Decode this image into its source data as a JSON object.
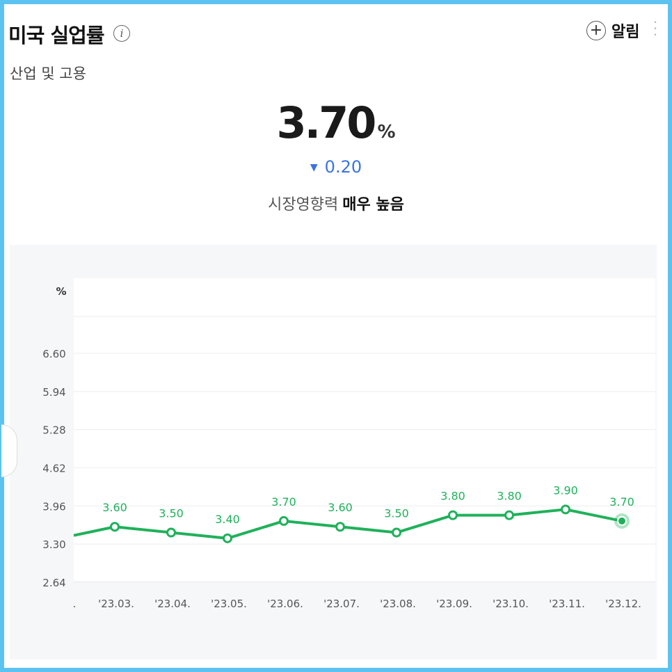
{
  "header": {
    "title": "미국 실업률",
    "category": "산업 및 고용",
    "alarm_label": "알림",
    "alarm_icon": "plus-circle-icon",
    "info_icon": "info-icon",
    "more_icon": "vertical-dots-icon"
  },
  "summary": {
    "value": "3.70",
    "unit": "%",
    "change_direction": "down",
    "change_arrow": "▼",
    "change_value": "0.20",
    "impact_label": "시장영향력",
    "impact_level": "매우 높음"
  },
  "colors": {
    "accent": "#1fb15a",
    "change_down": "#3b73e0",
    "frame_border": "#5cc3f0"
  },
  "chart_data": {
    "type": "line",
    "unit_label": "%",
    "y_ticks": [
      "6.60",
      "5.94",
      "5.28",
      "4.62",
      "3.96",
      "3.30",
      "2.64"
    ],
    "ylim": [
      2.64,
      6.6
    ],
    "x_labels": [
      ".",
      "'23.03.",
      "'23.04.",
      "'23.05.",
      "'23.06.",
      "'23.07.",
      "'23.08.",
      "'23.09.",
      "'23.10.",
      "'23.11.",
      "'23.12."
    ],
    "series": [
      {
        "x": [
          "'23.03.",
          "'23.04.",
          "'23.05.",
          "'23.06.",
          "'23.07.",
          "'23.08.",
          "'23.09.",
          "'23.10.",
          "'23.11.",
          "'23.12."
        ],
        "values": [
          3.6,
          3.5,
          3.4,
          3.7,
          3.6,
          3.5,
          3.8,
          3.8,
          3.9,
          3.7
        ],
        "labels": [
          "3.60",
          "3.50",
          "3.40",
          "3.70",
          "3.60",
          "3.50",
          "3.80",
          "3.80",
          "3.90",
          "3.70"
        ],
        "lead_in_value": 3.45
      }
    ],
    "highlight_last": true,
    "grid": true
  }
}
